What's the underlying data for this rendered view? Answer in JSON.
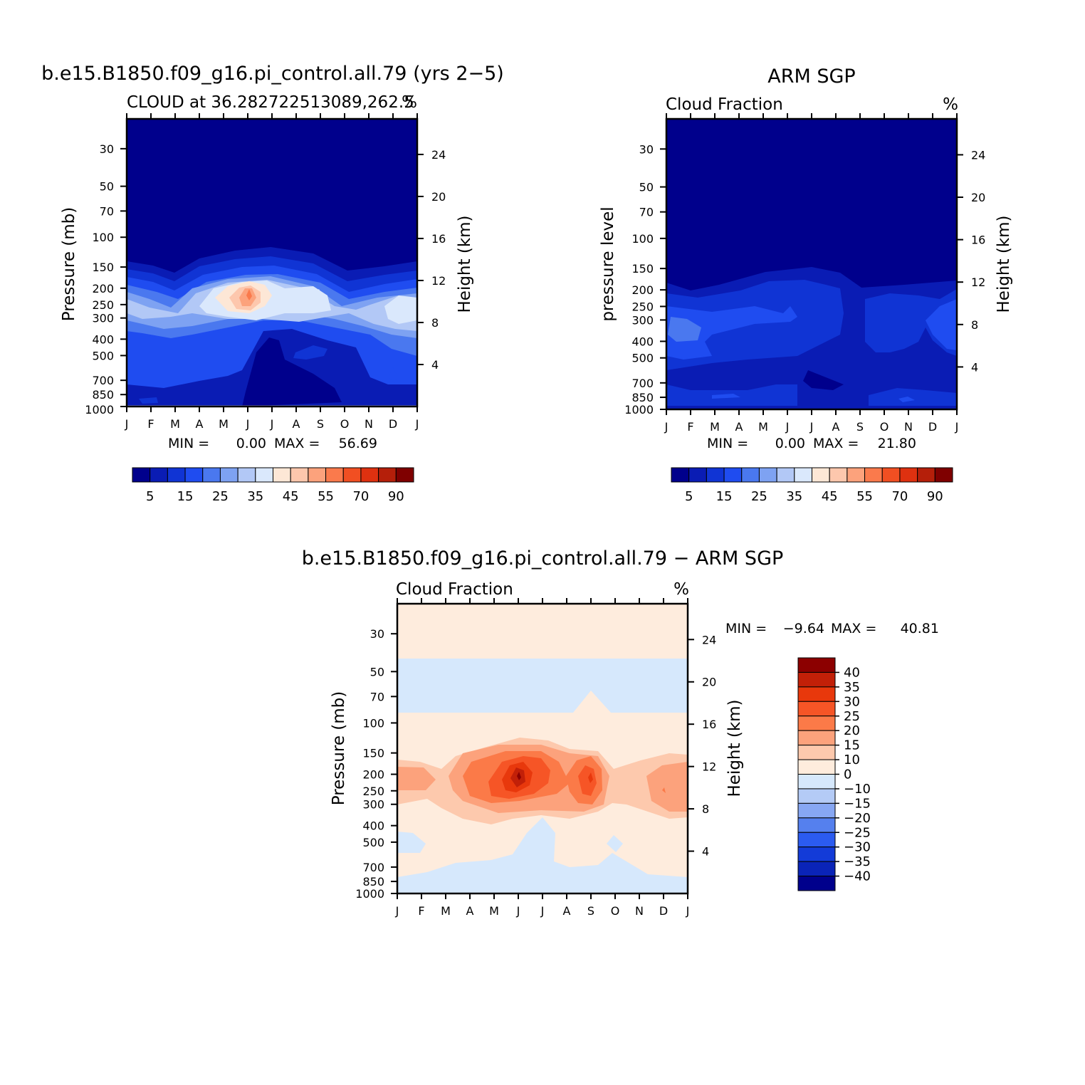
{
  "chart_data": [
    {
      "type": "heatmap",
      "title": "b.e15.B1850.f09_g16.pi_control.all.79 (yrs 2−5)",
      "subtitle_left": "CLOUD at 36.282722513089,262.5",
      "subtitle_right": "%",
      "ylabel": "Pressure (mb)",
      "ylabel_right": "Height (km)",
      "x_ticks": [
        "J",
        "F",
        "M",
        "A",
        "M",
        "J",
        "J",
        "A",
        "S",
        "O",
        "N",
        "D",
        "J"
      ],
      "y_ticks": [
        "30",
        "50",
        "70",
        "100",
        "150",
        "200",
        "250",
        "300",
        "400",
        "500",
        "700",
        "850",
        "1000"
      ],
      "y_ticks_right": [
        "24",
        "20",
        "16",
        "12",
        "8",
        "4"
      ],
      "min_label": "MIN =",
      "min_value": "0.00",
      "max_label": "MAX =",
      "max_value": "56.69",
      "colorbar_labels": [
        "5",
        "15",
        "25",
        "35",
        "45",
        "55",
        "70",
        "90"
      ],
      "colorbar_colors": [
        "#00008c",
        "#0a1cb4",
        "#1034d4",
        "#1f4cf0",
        "#4a78ef",
        "#7ea2f2",
        "#b2c8f6",
        "#dae8fc",
        "#fde7d6",
        "#fdc7ad",
        "#fca27c",
        "#fa7a4c",
        "#f14f22",
        "#de3110",
        "#b51f0a",
        "#7f0000"
      ]
    },
    {
      "type": "heatmap",
      "title": "ARM SGP",
      "subtitle_left": "Cloud Fraction",
      "subtitle_right": "%",
      "ylabel": "pressure level",
      "ylabel_right": "Height (km)",
      "x_ticks": [
        "J",
        "F",
        "M",
        "A",
        "M",
        "J",
        "J",
        "A",
        "S",
        "O",
        "N",
        "D",
        "J"
      ],
      "y_ticks": [
        "30",
        "50",
        "70",
        "100",
        "150",
        "200",
        "250",
        "300",
        "400",
        "500",
        "700",
        "850",
        "1000"
      ],
      "y_ticks_right": [
        "24",
        "20",
        "16",
        "12",
        "8",
        "4"
      ],
      "min_label": "MIN =",
      "min_value": "0.00",
      "max_label": "MAX =",
      "max_value": "21.80",
      "colorbar_labels": [
        "5",
        "15",
        "25",
        "35",
        "45",
        "55",
        "70",
        "90"
      ],
      "colorbar_colors": [
        "#00008c",
        "#0a1cb4",
        "#1034d4",
        "#1f4cf0",
        "#4a78ef",
        "#7ea2f2",
        "#b2c8f6",
        "#dae8fc",
        "#fde7d6",
        "#fdc7ad",
        "#fca27c",
        "#fa7a4c",
        "#f14f22",
        "#de3110",
        "#b51f0a",
        "#7f0000"
      ]
    },
    {
      "type": "heatmap",
      "title": "b.e15.B1850.f09_g16.pi_control.all.79 − ARM SGP",
      "subtitle_left": "Cloud Fraction",
      "subtitle_right": "%",
      "ylabel": "Pressure (mb)",
      "ylabel_right": "Height (km)",
      "x_ticks": [
        "J",
        "F",
        "M",
        "A",
        "M",
        "J",
        "J",
        "A",
        "S",
        "O",
        "N",
        "D",
        "J"
      ],
      "y_ticks": [
        "30",
        "50",
        "70",
        "100",
        "150",
        "200",
        "250",
        "300",
        "400",
        "500",
        "700",
        "850",
        "1000"
      ],
      "y_ticks_right": [
        "24",
        "20",
        "16",
        "12",
        "8",
        "4"
      ],
      "min_label": "MIN =",
      "min_value": "−9.64",
      "max_label": "MAX =",
      "max_value": "40.81",
      "colorbar_labels": [
        "40",
        "35",
        "30",
        "25",
        "20",
        "15",
        "10",
        "0",
        "−10",
        "−15",
        "−20",
        "−25",
        "−30",
        "−35",
        "−40"
      ],
      "colorbar_colors": [
        "#8c0000",
        "#c22008",
        "#e8380c",
        "#f65526",
        "#fb7a48",
        "#fca27c",
        "#fdc9ad",
        "#feecdd",
        "#d6e8fc",
        "#b4cbf6",
        "#87a7f3",
        "#5580ee",
        "#2b5bf0",
        "#133bd8",
        "#0a24b8",
        "#00008c"
      ]
    }
  ]
}
